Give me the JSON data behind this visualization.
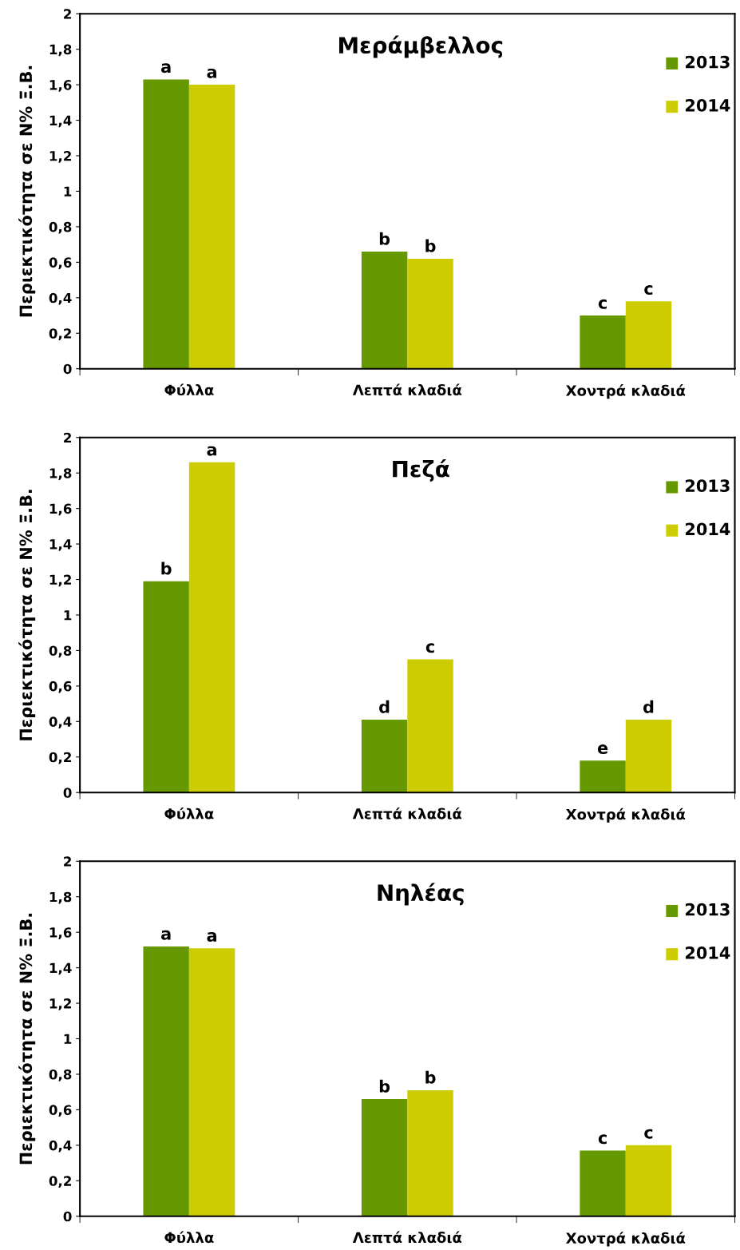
{
  "chart_data": [
    {
      "type": "bar",
      "title": "Μεράμβελλος",
      "ylabel": "Περιεκτικότητα σε Ν% Ξ.Β.",
      "categories": [
        "Φύλλα",
        "Λεπτά κλαδιά",
        "Χοντρά κλαδιά"
      ],
      "series": [
        {
          "name": "2013",
          "color": "#669900",
          "values": [
            1.63,
            0.66,
            0.3
          ],
          "value_labels": [
            "a",
            "b",
            "c"
          ]
        },
        {
          "name": "2014",
          "color": "#cccc00",
          "values": [
            1.6,
            0.62,
            0.38
          ],
          "value_labels": [
            "a",
            "b",
            "c"
          ]
        }
      ],
      "ylim": [
        0,
        2
      ],
      "yticks": [
        0,
        {
          "value": 0.2,
          "label": "0,2"
        },
        {
          "value": 0.4,
          "label": "0,4"
        },
        {
          "value": 0.6,
          "label": "0,6"
        },
        {
          "value": 0.8,
          "label": "0,8"
        },
        1,
        {
          "value": 1.2,
          "label": "1,2"
        },
        {
          "value": 1.4,
          "label": "1,4"
        },
        {
          "value": 1.6,
          "label": "1,6"
        },
        {
          "value": 1.8,
          "label": "1,8"
        },
        2
      ],
      "grid": false,
      "legend": "top right"
    },
    {
      "type": "bar",
      "title": "Πεζά",
      "ylabel": "Περιεκτικότητα σε Ν% Ξ.Β.",
      "categories": [
        "Φύλλα",
        "Λεπτά κλαδιά",
        "Χοντρά κλαδιά"
      ],
      "series": [
        {
          "name": "2013",
          "color": "#669900",
          "values": [
            1.19,
            0.41,
            0.18
          ],
          "value_labels": [
            "b",
            "d",
            "e"
          ]
        },
        {
          "name": "2014",
          "color": "#cccc00",
          "values": [
            1.86,
            0.75,
            0.41
          ],
          "value_labels": [
            "a",
            "c",
            "d"
          ]
        }
      ],
      "ylim": [
        0,
        2
      ],
      "yticks": [
        0,
        {
          "value": 0.2,
          "label": "0,2"
        },
        {
          "value": 0.4,
          "label": "0,4"
        },
        {
          "value": 0.6,
          "label": "0,6"
        },
        {
          "value": 0.8,
          "label": "0,8"
        },
        1,
        {
          "value": 1.2,
          "label": "1,2"
        },
        {
          "value": 1.4,
          "label": "1,4"
        },
        {
          "value": 1.6,
          "label": "1,6"
        },
        {
          "value": 1.8,
          "label": "1,8"
        },
        2
      ],
      "grid": false,
      "legend": "top right"
    },
    {
      "type": "bar",
      "title": "Νηλέας",
      "ylabel": "Περιεκτικότητα σε Ν% Ξ.Β.",
      "categories": [
        "Φύλλα",
        "Λεπτά κλαδιά",
        "Χοντρά κλαδιά"
      ],
      "series": [
        {
          "name": "2013",
          "color": "#669900",
          "values": [
            1.52,
            0.66,
            0.37
          ],
          "value_labels": [
            "a",
            "b",
            "c"
          ]
        },
        {
          "name": "2014",
          "color": "#cccc00",
          "values": [
            1.51,
            0.71,
            0.4
          ],
          "value_labels": [
            "a",
            "b",
            "c"
          ]
        }
      ],
      "ylim": [
        0,
        2
      ],
      "yticks": [
        0,
        {
          "value": 0.2,
          "label": "0,2"
        },
        {
          "value": 0.4,
          "label": "0,4"
        },
        {
          "value": 0.6,
          "label": "0,6"
        },
        {
          "value": 0.8,
          "label": "0,8"
        },
        1,
        {
          "value": 1.2,
          "label": "1,2"
        },
        {
          "value": 1.4,
          "label": "1,4"
        },
        {
          "value": 1.6,
          "label": "1,6"
        },
        {
          "value": 1.8,
          "label": "1,8"
        },
        2
      ],
      "grid": false,
      "legend": "top right"
    }
  ]
}
